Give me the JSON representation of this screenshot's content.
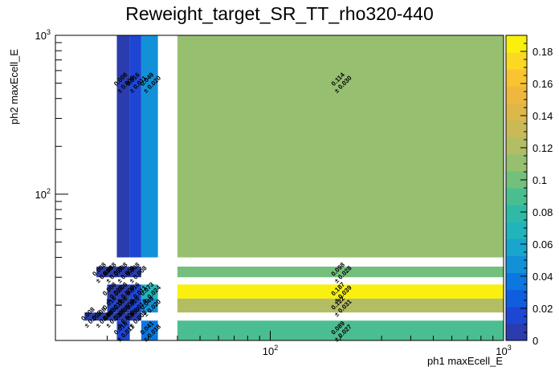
{
  "title": "Reweight_target_SR_TT_rho320-440",
  "chart_data": {
    "type": "heatmap",
    "title": "Reweight_target_SR_TT_rho320-440",
    "xlabel": "ph1 maxEcell_E",
    "ylabel": "ph2 maxEcell_E",
    "x_scale": "log",
    "y_scale": "log",
    "xlim": [
      12,
      1000
    ],
    "ylim": [
      12,
      1000
    ],
    "x_major_tick_labels": [
      "10^2",
      "10^3"
    ],
    "y_major_tick_labels": [
      "10^2",
      "10^3"
    ],
    "x_bin_edges": [
      12,
      20,
      22,
      25,
      28,
      33,
      40,
      1000
    ],
    "y_bin_edges": [
      12,
      14,
      16,
      18,
      22,
      27,
      30,
      35,
      40,
      1000
    ],
    "colorbar": {
      "min": 0,
      "max": 0.19,
      "tick_labels": [
        "0",
        "0.02",
        "0.04",
        "0.06",
        "0.08",
        "0.1",
        "0.12",
        "0.14",
        "0.16",
        "0.18"
      ]
    },
    "cells": [
      {
        "x": [
          28,
          33
        ],
        "y": [
          40,
          1000
        ],
        "value": 0.049,
        "label": "0.049",
        "error": "± 0.020"
      },
      {
        "x": [
          40,
          1000
        ],
        "y": [
          40,
          1000
        ],
        "value": 0.114,
        "label": "0.114",
        "error": "± 0.030"
      },
      {
        "x": [
          22,
          25
        ],
        "y": [
          40,
          1000
        ],
        "value": 0.008,
        "label": "0.008",
        "error": "± 0.008"
      },
      {
        "x": [
          25,
          28
        ],
        "y": [
          40,
          1000
        ],
        "value": 0.016,
        "label": "0.016",
        "error": "± 0.011"
      },
      {
        "x": [
          40,
          1000
        ],
        "y": [
          30,
          35
        ],
        "value": 0.098,
        "label": "0.098",
        "error": "± 0.028"
      },
      {
        "x": [
          22,
          25
        ],
        "y": [
          30,
          35
        ],
        "value": 0.008,
        "label": "0.008",
        "error": "± 0.008"
      },
      {
        "x": [
          25,
          28
        ],
        "y": [
          30,
          35
        ],
        "value": 0.008,
        "label": "0.008",
        "error": "± 0.008"
      },
      {
        "x": [
          40,
          1000
        ],
        "y": [
          22,
          27
        ],
        "value": 0.187,
        "label": "0.187",
        "error": "± 0.039"
      },
      {
        "x": [
          28,
          33
        ],
        "y": [
          22,
          27
        ],
        "value": 0.073,
        "label": "0.073",
        "error": "± 0.024"
      },
      {
        "x": [
          40,
          1000
        ],
        "y": [
          18,
          22
        ],
        "value": 0.122,
        "label": "0.122",
        "error": "± 0.031"
      },
      {
        "x": [
          28,
          33
        ],
        "y": [
          18,
          22
        ],
        "value": 0.049,
        "label": "0.049",
        "error": "± 0.020"
      },
      {
        "x": [
          40,
          1000
        ],
        "y": [
          12,
          16
        ],
        "value": 0.089,
        "label": "0.089",
        "error": "± 0.027"
      },
      {
        "x": [
          28,
          33
        ],
        "y": [
          12,
          16
        ],
        "value": 0.041,
        "label": "0.041",
        "error": "± 0.018"
      },
      {
        "x": [
          22,
          25
        ],
        "y": [
          12,
          16
        ],
        "value": 0.016,
        "label": "0.016",
        "error": "± 0.011"
      },
      {
        "x": [
          20,
          22
        ],
        "y": [
          30,
          35
        ],
        "value": 0.008,
        "label": "0.008",
        "error": "± 0.008"
      },
      {
        "x": [
          18,
          20
        ],
        "y": [
          30,
          35
        ],
        "value": 0.008,
        "label": "0.008",
        "error": "± 0.008"
      },
      {
        "x": [
          20,
          22
        ],
        "y": [
          22,
          27
        ],
        "value": 0.008,
        "label": "0.008",
        "error": "± 0.008"
      },
      {
        "x": [
          22,
          25
        ],
        "y": [
          22,
          27
        ],
        "value": 0.008,
        "label": "0.008",
        "error": "± 0.008"
      },
      {
        "x": [
          25,
          28
        ],
        "y": [
          22,
          27
        ],
        "value": 0.016,
        "label": "0.016",
        "error": "± 0.011"
      },
      {
        "x": [
          20,
          22
        ],
        "y": [
          18,
          22
        ],
        "value": 0.016,
        "label": "0.016",
        "error": "± 0.011"
      },
      {
        "x": [
          22,
          25
        ],
        "y": [
          18,
          22
        ],
        "value": 0.008,
        "label": "0.008",
        "error": "± 0.008"
      },
      {
        "x": [
          25,
          28
        ],
        "y": [
          18,
          22
        ],
        "value": 0.02,
        "label": "0.020",
        "error": "± 0.014"
      },
      {
        "x": [
          16,
          18
        ],
        "y": [
          16,
          18
        ],
        "value": 0.008,
        "label": "0.008",
        "error": "± 0.008"
      },
      {
        "x": [
          18,
          20
        ],
        "y": [
          16,
          18
        ],
        "value": 0.008,
        "label": "0.008",
        "error": "± 0.008"
      },
      {
        "x": [
          20,
          22
        ],
        "y": [
          16,
          18
        ],
        "value": 0.008,
        "label": "0.008",
        "error": "± 0.008"
      },
      {
        "x": [
          22,
          25
        ],
        "y": [
          16,
          18
        ],
        "value": 0.008,
        "label": "0.008",
        "error": "± 0.008"
      },
      {
        "x": [
          25,
          28
        ],
        "y": [
          16,
          18
        ],
        "value": 0.008,
        "label": "0.008",
        "error": "± 0.008"
      }
    ],
    "grid": false
  }
}
